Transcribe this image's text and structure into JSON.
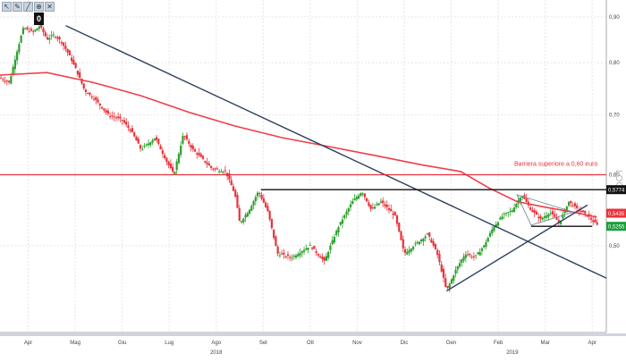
{
  "toolbar": {
    "icons": [
      "cursor-icon",
      "pencil-icon",
      "line-tool-icon",
      "zoom-icon",
      "close-icon"
    ]
  },
  "badge": "0",
  "axis_side_label": "LOG",
  "annotation": "Barriera superiore a 0,60 euro",
  "price_tags": [
    {
      "text": "0,5774",
      "value": 0.5774,
      "color": "#111111"
    },
    {
      "text": "0,5435",
      "value": 0.5435,
      "color": "#e8323b"
    },
    {
      "text": "0,5255",
      "value": 0.5255,
      "color": "#1a9e3c"
    }
  ],
  "chart_data": {
    "type": "candlestick",
    "title": "",
    "ylabel": "",
    "y_scale": "log",
    "ylim": [
      0.4,
      0.94
    ],
    "y_ticks": [
      {
        "value": 0.9,
        "label": "0,90"
      },
      {
        "value": 0.8,
        "label": "0,80"
      },
      {
        "value": 0.7,
        "label": "0,70"
      },
      {
        "value": 0.6,
        "label": "0,60"
      },
      {
        "value": 0.5,
        "label": "0,50"
      }
    ],
    "x_ticks": [
      "Apr",
      "Mag",
      "Giu",
      "Lug",
      "Ago",
      "Set",
      "Ott",
      "Nov",
      "Dic",
      "Gen",
      "Feb",
      "Mar",
      "Apr"
    ],
    "x_tick_positions": [
      0.6,
      1.6,
      2.6,
      3.6,
      4.6,
      5.6,
      6.6,
      7.6,
      8.6,
      9.6,
      10.6,
      11.6,
      12.6
    ],
    "years": [
      {
        "label": "2018",
        "at": 4.6
      },
      {
        "label": "2019",
        "at": 10.9
      }
    ],
    "xlim": [
      0,
      12.9
    ],
    "colors": {
      "up": "#2ca02c",
      "down": "#e8323b",
      "ma": "#ef3e4a",
      "trend": "#2e3f5f",
      "barrier": "#e8323b",
      "support": "#111111"
    },
    "close_path": [
      [
        0.0,
        0.77
      ],
      [
        0.2,
        0.76
      ],
      [
        0.35,
        0.82
      ],
      [
        0.5,
        0.875
      ],
      [
        0.7,
        0.865
      ],
      [
        0.85,
        0.88
      ],
      [
        1.0,
        0.85
      ],
      [
        1.15,
        0.86
      ],
      [
        1.3,
        0.845
      ],
      [
        1.45,
        0.82
      ],
      [
        1.6,
        0.79
      ],
      [
        1.8,
        0.745
      ],
      [
        2.0,
        0.73
      ],
      [
        2.3,
        0.7
      ],
      [
        2.6,
        0.69
      ],
      [
        2.8,
        0.67
      ],
      [
        3.0,
        0.64
      ],
      [
        3.3,
        0.66
      ],
      [
        3.55,
        0.62
      ],
      [
        3.7,
        0.6
      ],
      [
        3.9,
        0.665
      ],
      [
        4.1,
        0.64
      ],
      [
        4.3,
        0.625
      ],
      [
        4.5,
        0.61
      ],
      [
        4.8,
        0.605
      ],
      [
        5.0,
        0.57
      ],
      [
        5.1,
        0.53
      ],
      [
        5.3,
        0.548
      ],
      [
        5.5,
        0.575
      ],
      [
        5.7,
        0.545
      ],
      [
        5.9,
        0.49
      ],
      [
        6.2,
        0.485
      ],
      [
        6.6,
        0.5
      ],
      [
        6.9,
        0.48
      ],
      [
        7.2,
        0.525
      ],
      [
        7.5,
        0.56
      ],
      [
        7.7,
        0.575
      ],
      [
        7.9,
        0.548
      ],
      [
        8.1,
        0.56
      ],
      [
        8.4,
        0.54
      ],
      [
        8.6,
        0.49
      ],
      [
        8.9,
        0.505
      ],
      [
        9.1,
        0.515
      ],
      [
        9.3,
        0.49
      ],
      [
        9.5,
        0.445
      ],
      [
        9.7,
        0.47
      ],
      [
        9.9,
        0.49
      ],
      [
        10.1,
        0.485
      ],
      [
        10.3,
        0.5
      ],
      [
        10.5,
        0.525
      ],
      [
        10.7,
        0.54
      ],
      [
        10.9,
        0.548
      ],
      [
        11.1,
        0.57
      ],
      [
        11.3,
        0.548
      ],
      [
        11.5,
        0.535
      ],
      [
        11.7,
        0.545
      ],
      [
        11.9,
        0.53
      ],
      [
        12.1,
        0.56
      ],
      [
        12.3,
        0.548
      ],
      [
        12.5,
        0.54
      ],
      [
        12.7,
        0.527
      ]
    ],
    "moving_average": [
      [
        0.0,
        0.775
      ],
      [
        1.0,
        0.78
      ],
      [
        2.0,
        0.76
      ],
      [
        3.0,
        0.735
      ],
      [
        4.0,
        0.705
      ],
      [
        5.0,
        0.68
      ],
      [
        6.0,
        0.66
      ],
      [
        7.0,
        0.645
      ],
      [
        8.0,
        0.63
      ],
      [
        9.0,
        0.615
      ],
      [
        9.8,
        0.605
      ],
      [
        10.4,
        0.58
      ],
      [
        11.0,
        0.56
      ],
      [
        11.6,
        0.552
      ],
      [
        12.2,
        0.545
      ],
      [
        12.7,
        0.538
      ]
    ],
    "trend_lines": [
      {
        "from": [
          1.4,
          0.88
        ],
        "to": [
          12.9,
          0.46
        ]
      },
      {
        "from": [
          9.5,
          0.445
        ],
        "to": [
          12.5,
          0.555
        ]
      }
    ],
    "horizontal_lines": [
      {
        "value": 0.6,
        "x_from": 0.0,
        "x_to": 12.9,
        "role": "barrier"
      },
      {
        "value": 0.5774,
        "x_from": 5.55,
        "x_to": 12.9,
        "role": "resistance"
      },
      {
        "value": 0.5255,
        "x_from": 11.3,
        "x_to": 12.6,
        "role": "support"
      }
    ],
    "triangle": [
      [
        11.0,
        0.57
      ],
      [
        11.3,
        0.527
      ],
      [
        12.2,
        0.545
      ]
    ]
  }
}
